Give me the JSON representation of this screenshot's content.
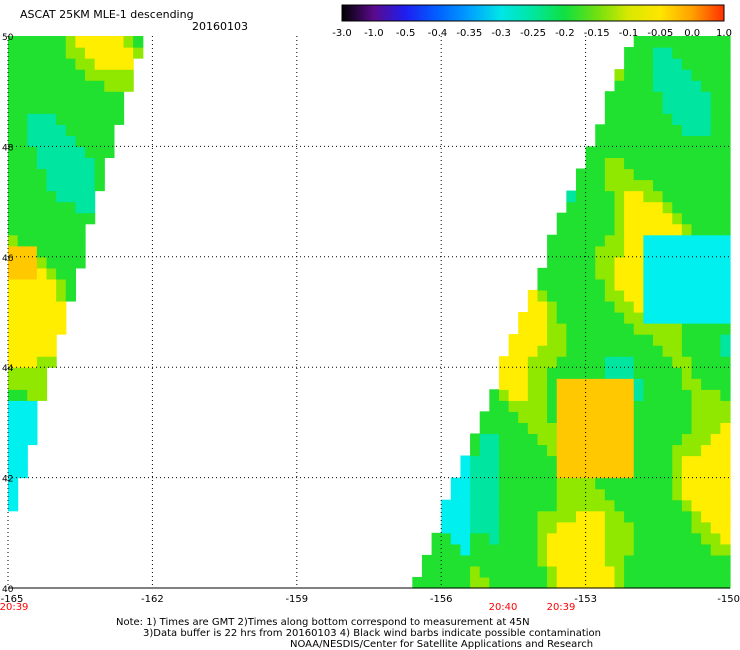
{
  "title": {
    "main": "ASCAT 25KM MLE-1 descending",
    "date": "20160103"
  },
  "colorbar": {
    "labels": [
      "-3.0",
      "-1.0",
      "-0.5",
      "-0.4",
      "-0.35",
      "-0.3",
      "-0.25",
      "-0.2",
      "-0.15",
      "-0.1",
      "-0.05",
      "0.0",
      "1.0"
    ],
    "colors": [
      "#000000",
      "#5a0a8c",
      "#1e1ef0",
      "#0060ff",
      "#00a0ff",
      "#00e6e6",
      "#00e6a0",
      "#10e040",
      "#70e010",
      "#d8e800",
      "#ffe600",
      "#ffa000",
      "#ff3000"
    ]
  },
  "map": {
    "lat_labels": [
      "50",
      "48",
      "46",
      "44",
      "42",
      "40"
    ],
    "lon_labels": [
      "-165",
      "-162",
      "-159",
      "-156",
      "-153",
      "-150"
    ],
    "time_labels": [
      "20:39",
      "20:40",
      "20:39"
    ],
    "time_color": "#ff0000",
    "swath_colors": {
      "cyan": "#00f0f0",
      "aqua_green": "#00e6a0",
      "green": "#20e030",
      "yellow_green": "#90e800",
      "yellow": "#ffee00",
      "gold": "#ffc800",
      "orange": "#ff8c00"
    }
  },
  "notes": {
    "line1": "Note: 1) Times are GMT 2)Times along bottom correspond to measurement at 45N",
    "line2": "3)Data buffer is 22 hrs from 20160103 4) Black wind barbs indicate possible contamination",
    "line3": "NOAA/NESDIS/Center for Satellite Applications and Research"
  }
}
